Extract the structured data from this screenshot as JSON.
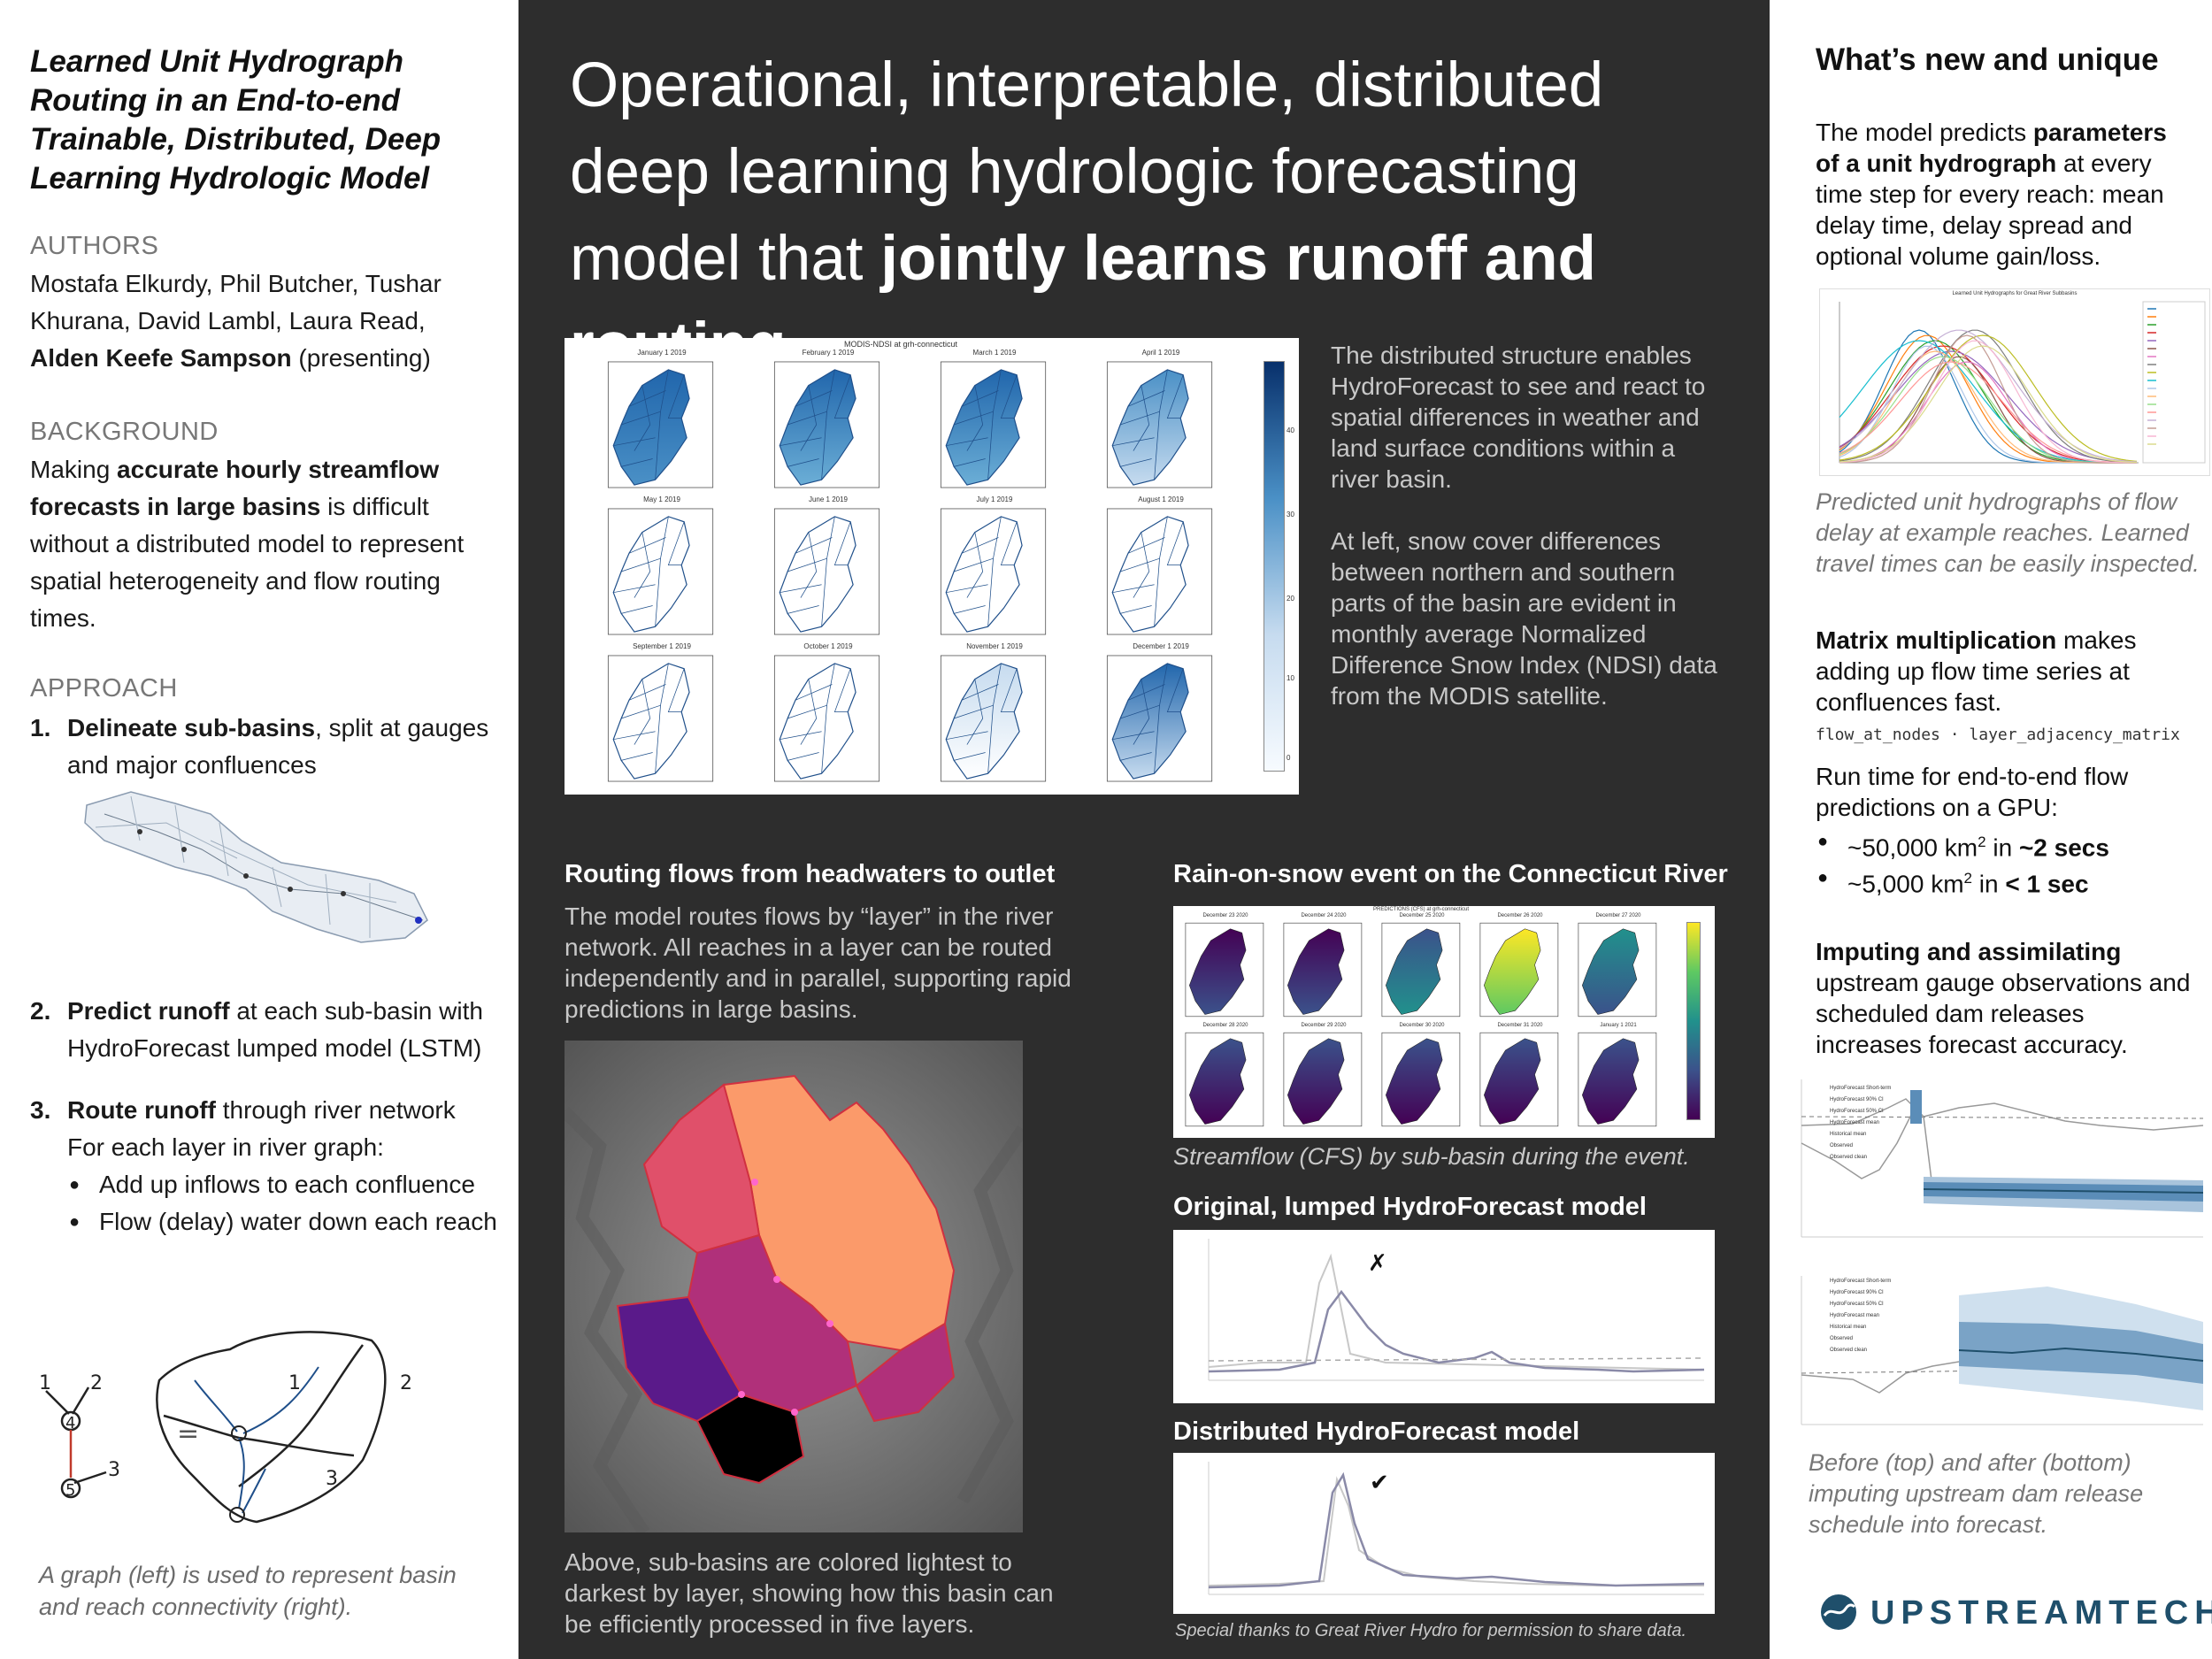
{
  "left": {
    "title": "Learned Unit Hydrograph Routing in an End-to-end Trainable, Distributed, Deep Learning Hydrologic Model",
    "authors_heading": "AUTHORS",
    "authors_text": "Mostafa Elkurdy, Phil Butcher, Tushar Khurana, David Lambl, Laura Read,",
    "presenter_name": "Alden Keefe Sampson",
    "presenter_suffix": " (presenting)",
    "background_heading": "BACKGROUND",
    "background_pre": "Making ",
    "background_bold": "accurate hourly streamflow forecasts in large basins",
    "background_post": " is difficult without a distributed model to represent spatial heterogeneity and flow routing times.",
    "approach_heading": "APPROACH",
    "steps": [
      {
        "num": "1.",
        "bold": "Delineate sub-basins",
        "rest": ", split at gauges and major confluences"
      },
      {
        "num": "2.",
        "bold": "Predict runoff",
        "rest": " at each sub-basin with HydroForecast lumped model (LSTM)"
      },
      {
        "num": "3.",
        "bold": "Route runoff",
        "rest": " through river network"
      }
    ],
    "step3_sub": "For each layer in river graph:",
    "step3_bullets": [
      "Add up inflows to each confluence",
      "Flow (delay) water down each reach"
    ],
    "graph_labels": {
      "n1": "1",
      "n2": "2",
      "n3": "3",
      "n4": "4",
      "n5": "5",
      "eq": "="
    },
    "graph_caption": "A graph (left) is used to represent basin and reach connectivity (right)."
  },
  "center": {
    "headline_pre": "Operational, interpretable, distributed deep learning hydrologic forecasting model that ",
    "headline_bold": "jointly learns runoff and routing",
    "ndsi_title": "MODIS-NDSI at grh-connecticut",
    "ndsi_months": [
      "January 1 2019",
      "February 1 2019",
      "March 1 2019",
      "April 1 2019",
      "May 1 2019",
      "June 1 2019",
      "July 1 2019",
      "August 1 2019",
      "September 1 2019",
      "October 1 2019",
      "November 1 2019",
      "December 1 2019"
    ],
    "ndsi_ticks": [
      "0",
      "10",
      "20",
      "30",
      "40"
    ],
    "ndsi_text1": "The distributed structure enables HydroForecast to see and react to spatial differences in weather and land surface conditions within a river basin.",
    "ndsi_text2": "At left, snow cover differences between northern and southern parts of the basin are evident in monthly average Normalized Difference Snow Index (NDSI) data from the MODIS satellite.",
    "routing_heading": "Routing flows from headwaters to outlet",
    "routing_text": "The model routes flows by “layer” in the river network. All reaches in a layer can be routed independently and in parallel, supporting rapid predictions in large basins.",
    "routing_caption": "Above, sub-basins are colored lightest to darkest by layer, showing how this basin can be efficiently processed in five layers.",
    "ros_heading": "Rain-on-snow event on the Connecticut River",
    "ros_title": "PREDICTIONS (CFS) at grh-connecticut",
    "ros_dates": [
      "December 23 2020",
      "December 24 2020",
      "December 25 2020",
      "December 26 2020",
      "December 27 2020",
      "December 28 2020",
      "December 29 2020",
      "December 30 2020",
      "December 31 2020",
      "January 1 2021"
    ],
    "ros_caption": "Streamflow (CFS) by sub-basin during the event.",
    "lumped_heading": "Original, lumped HydroForecast model",
    "lumped_mark": "✗",
    "dist_heading": "Distributed HydroForecast model",
    "dist_mark": "✔",
    "thanks": "Special thanks to Great River Hydro for permission to share data."
  },
  "right": {
    "whats_new_heading": "What’s new and unique",
    "uh_pre": "The model predicts ",
    "uh_bold": "parameters of a unit hydrograph",
    "uh_post": " at every time step for every reach: mean delay time, delay spread and optional volume gain/loss.",
    "uh_chart_title": "Learned Unit Hydrographs for Great River Subbasins",
    "uh_caption": "Predicted unit hydrographs of flow delay at example reaches. Learned travel times can be easily inspected.",
    "matrix_bold": "Matrix multiplication",
    "matrix_rest": " makes adding up flow time series at confluences fast.",
    "code": "flow_at_nodes · layer_adjacency_matrix",
    "runtime_text": "Run time for end-to-end flow predictions on a GPU:",
    "runtime_bullets": [
      {
        "pre": "~50,000 km",
        "sup": "2",
        "mid": " in ",
        "bold": "~2 secs"
      },
      {
        "pre": "~5,000 km",
        "sup": "2",
        "mid": " in ",
        "bold": "< 1 sec"
      }
    ],
    "impute_bold": "Imputing and assimilating",
    "impute_rest": " upstream gauge observations and scheduled dam releases increases forecast accuracy.",
    "legend_items": [
      "HydroForecast Short-term",
      "HydroForecast 90% CI",
      "HydroForecast 50% CI",
      "HydroForecast mean",
      "Historical mean",
      "Observed",
      "Observed clean"
    ],
    "impute_caption": "Before (top) and after (bottom) imputing upstream dam release schedule into forecast.",
    "logo_text": "UPSTREAMTECH"
  },
  "colors": {
    "center_bg": "#2d2d2d",
    "accent_blue": "#1f4f6b",
    "ndsi_dark": "#08306b",
    "ndsi_light": "#deebf7",
    "layer_colors": [
      "#fb9a6a",
      "#e0506a",
      "#b0307a",
      "#5a1a8a",
      "#000000"
    ]
  }
}
